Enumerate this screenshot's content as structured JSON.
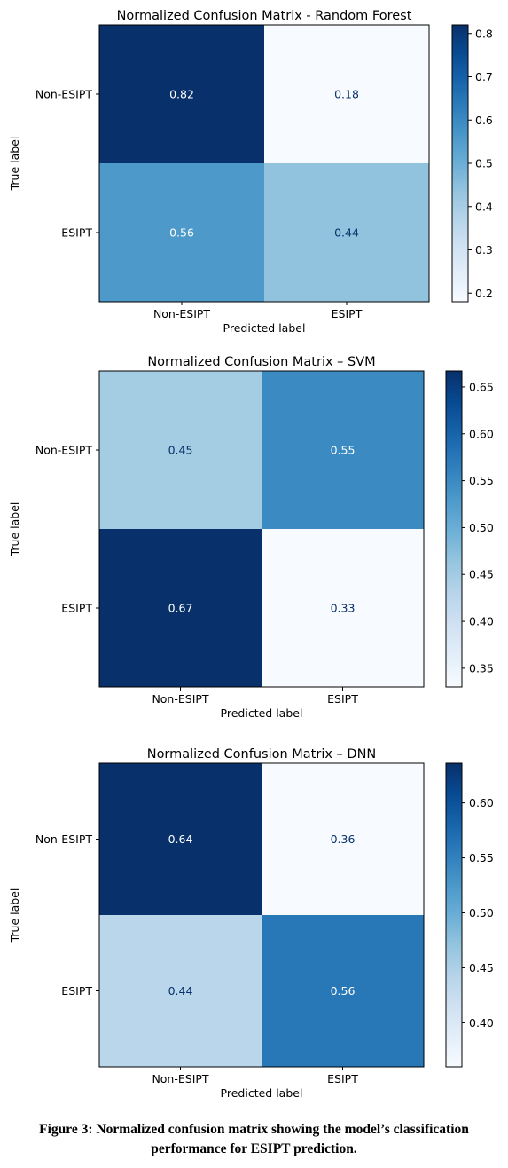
{
  "chart_data": [
    {
      "type": "heatmap",
      "title": "Normalized Confusion Matrix - Random Forest",
      "xlabel": "Predicted label",
      "ylabel": "True label",
      "x_categories": [
        "Non-ESIPT",
        "ESIPT"
      ],
      "y_categories": [
        "Non-ESIPT",
        "ESIPT"
      ],
      "values": [
        [
          0.82,
          0.18
        ],
        [
          0.56,
          0.44
        ]
      ],
      "colormap": "Blues",
      "colorbar": {
        "range": [
          0.18,
          0.82
        ],
        "ticks": [
          "0.2",
          "0.3",
          "0.4",
          "0.5",
          "0.6",
          "0.7",
          "0.8"
        ]
      }
    },
    {
      "type": "heatmap",
      "title": "Normalized Confusion Matrix – SVM",
      "xlabel": "Predicted label",
      "ylabel": "True label",
      "x_categories": [
        "Non-ESIPT",
        "ESIPT"
      ],
      "y_categories": [
        "Non-ESIPT",
        "ESIPT"
      ],
      "values": [
        [
          0.45,
          0.55
        ],
        [
          0.67,
          0.33
        ]
      ],
      "colormap": "Blues",
      "colorbar": {
        "range": [
          0.33,
          0.667
        ],
        "ticks": [
          "0.35",
          "0.40",
          "0.45",
          "0.50",
          "0.55",
          "0.60",
          "0.65"
        ]
      }
    },
    {
      "type": "heatmap",
      "title": "Normalized Confusion Matrix – DNN",
      "xlabel": "Predicted label",
      "ylabel": "True label",
      "x_categories": [
        "Non-ESIPT",
        "ESIPT"
      ],
      "y_categories": [
        "Non-ESIPT",
        "ESIPT"
      ],
      "values": [
        [
          0.64,
          0.36
        ],
        [
          0.44,
          0.56
        ]
      ],
      "colormap": "Blues",
      "colorbar": {
        "range": [
          0.36,
          0.636
        ],
        "ticks": [
          "0.40",
          "0.45",
          "0.50",
          "0.55",
          "0.60"
        ]
      }
    }
  ],
  "caption": {
    "line1": "Figure 3: Normalized confusion matrix showing the model’s classification",
    "line2": "performance for ESIPT prediction."
  }
}
